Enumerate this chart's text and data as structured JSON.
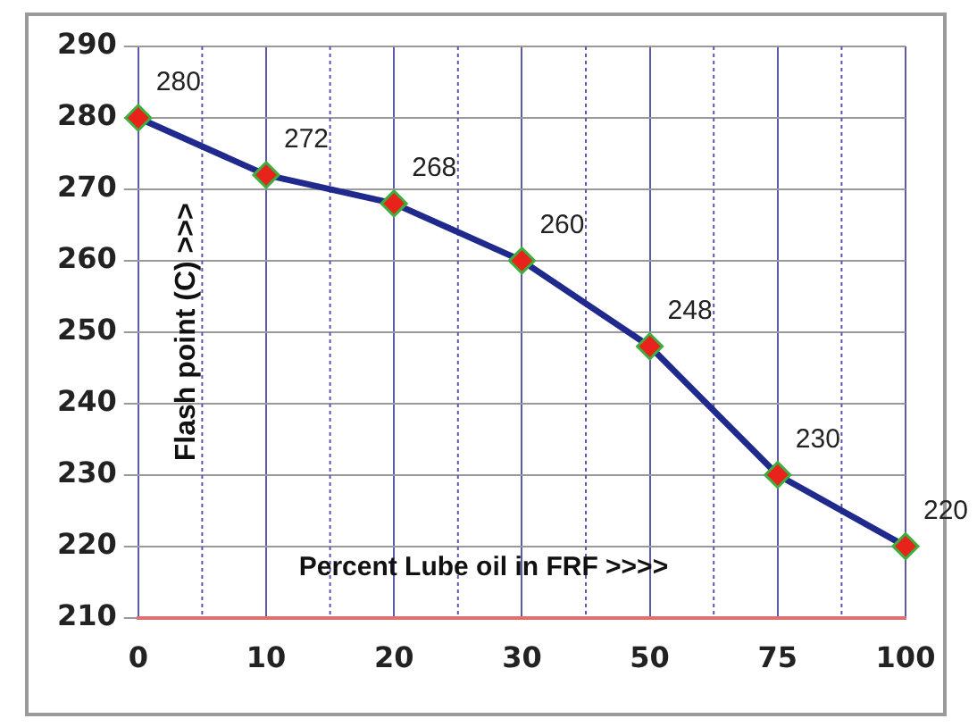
{
  "chart_data": {
    "type": "line",
    "xlabel": "Percent Lube oil in FRF >>>>",
    "ylabel": "Flash point (C) >>>",
    "categories": [
      "0",
      "10",
      "20",
      "30",
      "50",
      "75",
      "100"
    ],
    "series": [
      {
        "color": "#1f2a8c",
        "values": [
          280,
          272,
          268,
          260,
          248,
          230,
          220
        ]
      }
    ],
    "ylim": [
      210,
      290
    ],
    "yticks": [
      210,
      220,
      230,
      240,
      250,
      260,
      270,
      280,
      290
    ],
    "grid": true,
    "legend": false,
    "marker": "diamond",
    "line_style": "solid",
    "data_labels": true
  }
}
